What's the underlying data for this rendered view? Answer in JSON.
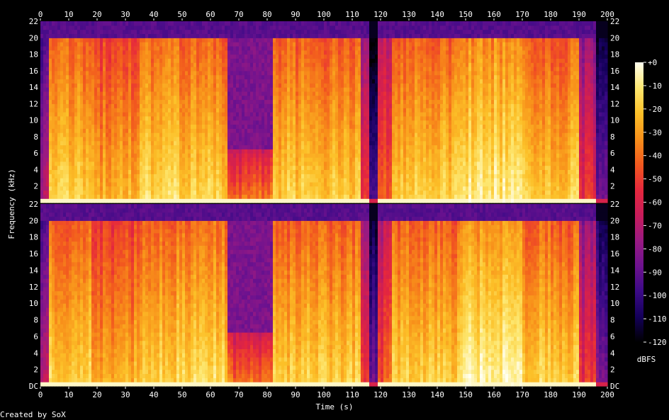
{
  "chart_data": {
    "type": "heatmap",
    "title": "",
    "xlabel": "Time (s)",
    "ylabel": "Frequency (kHz)",
    "xlim": [
      0,
      200
    ],
    "ylim": [
      0,
      22
    ],
    "x_ticks": [
      "0",
      "10",
      "20",
      "30",
      "40",
      "50",
      "60",
      "70",
      "80",
      "90",
      "100",
      "110",
      "120",
      "130",
      "140",
      "150",
      "160",
      "170",
      "180",
      "190",
      "200"
    ],
    "y_ticks_upper": [
      "2",
      "4",
      "6",
      "8",
      "10",
      "12",
      "14",
      "16",
      "18",
      "20",
      "22"
    ],
    "y_ticks_lower": [
      "DC",
      "2",
      "4",
      "6",
      "8",
      "10",
      "12",
      "14",
      "16",
      "18",
      "20",
      "22"
    ],
    "channels": 2,
    "colorbar": {
      "label": "dBFS",
      "range": [
        -120,
        0
      ],
      "ticks": [
        "+0",
        "-10",
        "-20",
        "-30",
        "-40",
        "-50",
        "-60",
        "-70",
        "-80",
        "-90",
        "-100",
        "-110",
        "-120"
      ]
    },
    "lowpass_cutoff_khz": 20,
    "segments": [
      {
        "t0": 0,
        "t1": 3,
        "level": 0.3
      },
      {
        "t0": 3,
        "t1": 18,
        "level": 0.72
      },
      {
        "t0": 18,
        "t1": 35,
        "level": 0.66
      },
      {
        "t0": 35,
        "t1": 66,
        "level": 0.74
      },
      {
        "t0": 66,
        "t1": 82,
        "level": 0.55,
        "cutoff_khz": 6.5
      },
      {
        "t0": 82,
        "t1": 113,
        "level": 0.72
      },
      {
        "t0": 113,
        "t1": 116,
        "level": 0.45
      },
      {
        "t0": 116,
        "t1": 119,
        "level": 0.12
      },
      {
        "t0": 119,
        "t1": 124,
        "level": 0.5
      },
      {
        "t0": 124,
        "t1": 147,
        "level": 0.72
      },
      {
        "t0": 147,
        "t1": 170,
        "level": 0.8
      },
      {
        "t0": 170,
        "t1": 190,
        "level": 0.72
      },
      {
        "t0": 190,
        "t1": 196,
        "level": 0.42
      },
      {
        "t0": 196,
        "t1": 200,
        "level": 0.18
      }
    ],
    "colormap": [
      "#000000",
      "#14005a",
      "#3c0a87",
      "#6e128f",
      "#9a1a82",
      "#c81c5a",
      "#e6283c",
      "#f25a1e",
      "#f8901a",
      "#fcc028",
      "#fde770",
      "#fffff0"
    ]
  },
  "credit": "Created by SoX"
}
